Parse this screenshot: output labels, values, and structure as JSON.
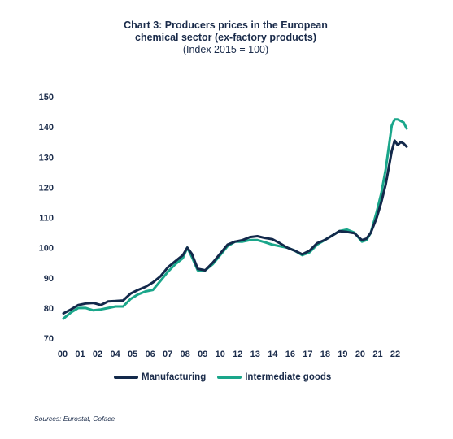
{
  "chart_data": {
    "type": "line",
    "title": "Chart 3: Producers prices in the European chemical sector (ex-factory products)",
    "subtitle": "(Index 2015 = 100)",
    "xlabel": "",
    "ylabel": "",
    "ylim": [
      70,
      150
    ],
    "yticks": [
      70,
      80,
      90,
      100,
      110,
      120,
      130,
      140,
      150
    ],
    "xlim": [
      2000,
      2023.0
    ],
    "xtick_labels": [
      "00",
      "01",
      "02",
      "04",
      "05",
      "06",
      "07",
      "08",
      "09",
      "10",
      "12",
      "13",
      "14",
      "16",
      "17",
      "18",
      "19",
      "20",
      "21",
      "22"
    ],
    "grid": false,
    "legend_position": "bottom",
    "colors": {
      "manufacturing": "#13294b",
      "intermediate": "#1aa68a"
    },
    "series": [
      {
        "name": "Manufacturing",
        "x": [
          2000.0,
          2000.5,
          2001.0,
          2001.5,
          2002.0,
          2002.5,
          2003.0,
          2003.5,
          2004.0,
          2004.5,
          2005.0,
          2005.5,
          2006.0,
          2006.5,
          2007.0,
          2007.5,
          2008.0,
          2008.3,
          2008.6,
          2009.0,
          2009.5,
          2010.0,
          2010.5,
          2011.0,
          2011.5,
          2012.0,
          2012.5,
          2013.0,
          2013.5,
          2014.0,
          2014.5,
          2015.0,
          2015.5,
          2016.0,
          2016.5,
          2017.0,
          2017.5,
          2018.0,
          2018.5,
          2019.0,
          2019.5,
          2020.0,
          2020.3,
          2020.6,
          2021.0,
          2021.3,
          2021.6,
          2022.0,
          2022.2,
          2022.4,
          2022.6,
          2022.8,
          2023.0
        ],
        "values": [
          78.2,
          79.5,
          81.0,
          81.5,
          81.7,
          81.0,
          82.2,
          82.3,
          82.5,
          84.8,
          86.0,
          87.0,
          88.5,
          90.5,
          93.5,
          95.5,
          97.5,
          100.0,
          98.0,
          93.0,
          92.5,
          95.0,
          98.0,
          101.0,
          102.0,
          102.5,
          103.5,
          103.8,
          103.2,
          102.8,
          101.5,
          100.0,
          99.0,
          97.8,
          99.0,
          101.5,
          102.5,
          104.0,
          105.5,
          105.2,
          104.8,
          102.5,
          103.0,
          105.0,
          110.0,
          115.0,
          121.0,
          132.0,
          135.5,
          134.0,
          135.0,
          134.5,
          133.5
        ]
      },
      {
        "name": "Intermediate goods",
        "x": [
          2000.0,
          2000.5,
          2001.0,
          2001.5,
          2002.0,
          2002.5,
          2003.0,
          2003.5,
          2004.0,
          2004.5,
          2005.0,
          2005.5,
          2006.0,
          2006.5,
          2007.0,
          2007.5,
          2008.0,
          2008.3,
          2008.6,
          2009.0,
          2009.5,
          2010.0,
          2010.5,
          2011.0,
          2011.5,
          2012.0,
          2012.5,
          2013.0,
          2013.5,
          2014.0,
          2014.5,
          2015.0,
          2015.5,
          2016.0,
          2016.5,
          2017.0,
          2017.5,
          2018.0,
          2018.5,
          2019.0,
          2019.5,
          2020.0,
          2020.3,
          2020.6,
          2021.0,
          2021.3,
          2021.6,
          2022.0,
          2022.2,
          2022.4,
          2022.6,
          2022.8,
          2023.0
        ],
        "values": [
          76.5,
          78.5,
          80.0,
          80.0,
          79.2,
          79.5,
          80.0,
          80.5,
          80.5,
          83.0,
          84.5,
          85.5,
          86.0,
          89.0,
          92.0,
          94.5,
          96.5,
          100.0,
          97.0,
          92.5,
          92.5,
          94.5,
          97.5,
          100.5,
          102.0,
          102.0,
          102.5,
          102.5,
          101.8,
          101.0,
          100.5,
          100.0,
          99.0,
          97.5,
          98.5,
          101.0,
          102.5,
          104.0,
          105.5,
          106.0,
          105.0,
          102.0,
          102.5,
          105.0,
          112.0,
          118.0,
          126.0,
          140.5,
          142.5,
          142.5,
          142.0,
          141.5,
          139.5
        ]
      }
    ]
  },
  "legend": {
    "manufacturing": "Manufacturing",
    "intermediate": "Intermediate goods"
  },
  "source": "Sources: Eurostat, Coface"
}
